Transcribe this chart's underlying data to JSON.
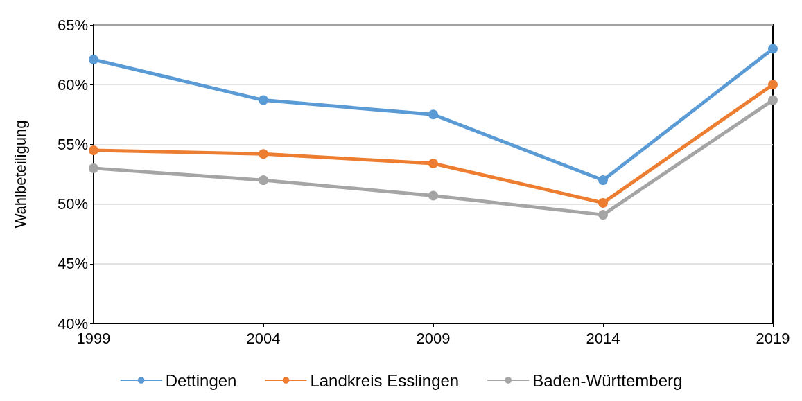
{
  "chart_data": {
    "type": "line",
    "ylabel": "Wahlbeteiligung",
    "x": [
      1999,
      2004,
      2009,
      2014,
      2019
    ],
    "series": [
      {
        "name": "Dettingen",
        "color": "#5b9bd5",
        "values": [
          62.1,
          58.7,
          57.5,
          52.0,
          63.0
        ]
      },
      {
        "name": "Landkreis Esslingen",
        "color": "#ed7d31",
        "values": [
          54.5,
          54.2,
          53.4,
          50.1,
          60.0
        ]
      },
      {
        "name": "Baden-Württemberg",
        "color": "#a5a5a5",
        "values": [
          53.0,
          52.0,
          50.7,
          49.1,
          58.7
        ]
      }
    ],
    "xlim": [
      1999,
      2019
    ],
    "xticks": [
      1999,
      2004,
      2009,
      2014,
      2019
    ],
    "ylim": [
      40,
      65
    ],
    "yticks": [
      {
        "value": 40,
        "label": "40%"
      },
      {
        "value": 45,
        "label": "45%"
      },
      {
        "value": 50,
        "label": "50%"
      },
      {
        "value": 55,
        "label": "55%"
      },
      {
        "value": 60,
        "label": "60%"
      },
      {
        "value": 65,
        "label": "65%"
      }
    ],
    "grid": "y",
    "legend": "bottom",
    "marker": "circle",
    "line_style": "solid"
  }
}
